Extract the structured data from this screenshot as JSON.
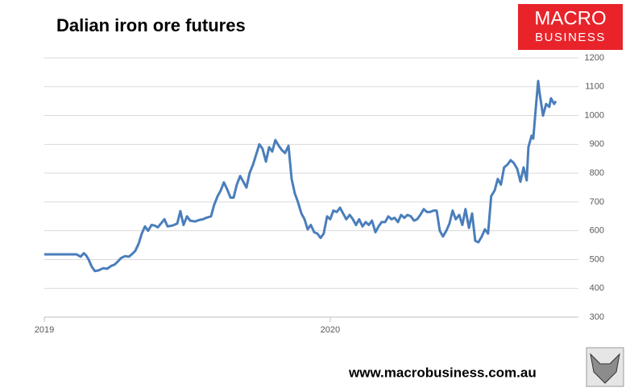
{
  "chart_data": {
    "type": "line",
    "title": "Dalian iron ore futures",
    "color": "#4a7ebb",
    "x": [
      2019.0,
      2019.113,
      2019.127,
      2019.138,
      2019.146,
      2019.155,
      2019.166,
      2019.177,
      2019.189,
      2019.206,
      2019.22,
      2019.234,
      2019.245,
      2019.256,
      2019.268,
      2019.282,
      2019.296,
      2019.31,
      2019.318,
      2019.33,
      2019.341,
      2019.352,
      2019.363,
      2019.375,
      2019.386,
      2019.397,
      2019.408,
      2019.42,
      2019.431,
      2019.448,
      2019.465,
      2019.476,
      2019.487,
      2019.499,
      2019.51,
      2019.527,
      2019.544,
      2019.555,
      2019.566,
      2019.583,
      2019.594,
      2019.606,
      2019.617,
      2019.628,
      2019.639,
      2019.651,
      2019.662,
      2019.673,
      2019.685,
      2019.696,
      2019.707,
      2019.718,
      2019.73,
      2019.741,
      2019.752,
      2019.763,
      2019.775,
      2019.786,
      2019.797,
      2019.808,
      2019.82,
      2019.831,
      2019.842,
      2019.854,
      2019.865,
      2019.876,
      2019.887,
      2019.899,
      2019.91,
      2019.921,
      2019.932,
      2019.944,
      2019.955,
      2019.966,
      2019.977,
      2019.989,
      2020.0,
      2020.011,
      2020.023,
      2020.034,
      2020.045,
      2020.056,
      2020.068,
      2020.079,
      2020.09,
      2020.101,
      2020.113,
      2020.124,
      2020.135,
      2020.146,
      2020.158,
      2020.169,
      2020.18,
      2020.192,
      2020.203,
      2020.214,
      2020.225,
      2020.237,
      2020.248,
      2020.259,
      2020.27,
      2020.282,
      2020.293,
      2020.304,
      2020.315,
      2020.327,
      2020.338,
      2020.349,
      2020.361,
      2020.372,
      2020.383,
      2020.394,
      2020.406,
      2020.417,
      2020.428,
      2020.439,
      2020.451,
      2020.462,
      2020.473,
      2020.485,
      2020.496,
      2020.507,
      2020.518,
      2020.53,
      2020.541,
      2020.552,
      2020.563,
      2020.575,
      2020.586,
      2020.597,
      2020.608,
      2020.62,
      2020.631,
      2020.642,
      2020.654,
      2020.665,
      2020.676,
      2020.687,
      2020.693,
      2020.704,
      2020.71,
      2020.721,
      2020.727,
      2020.732,
      2020.744,
      2020.755,
      2020.766,
      2020.772,
      2020.783,
      2020.789
    ],
    "values": [
      518,
      518,
      510,
      522,
      515,
      500,
      475,
      460,
      462,
      470,
      468,
      478,
      482,
      492,
      505,
      512,
      510,
      522,
      530,
      555,
      590,
      615,
      600,
      620,
      618,
      612,
      625,
      640,
      615,
      618,
      625,
      668,
      620,
      650,
      635,
      632,
      638,
      640,
      645,
      650,
      690,
      720,
      740,
      768,
      745,
      715,
      715,
      760,
      790,
      770,
      750,
      800,
      830,
      865,
      900,
      885,
      840,
      890,
      875,
      915,
      895,
      880,
      870,
      895,
      780,
      730,
      700,
      660,
      640,
      605,
      620,
      595,
      590,
      575,
      590,
      650,
      640,
      670,
      665,
      680,
      660,
      640,
      655,
      640,
      620,
      640,
      615,
      630,
      620,
      635,
      595,
      615,
      630,
      630,
      650,
      640,
      645,
      630,
      655,
      645,
      655,
      650,
      635,
      640,
      655,
      675,
      665,
      665,
      670,
      670,
      600,
      580,
      600,
      625,
      670,
      640,
      655,
      620,
      675,
      610,
      660,
      565,
      560,
      580,
      605,
      590,
      720,
      740,
      780,
      760,
      820,
      830,
      845,
      835,
      815,
      770,
      820,
      775,
      890,
      930,
      920,
      1050,
      1120,
      1080,
      1000,
      1040,
      1030,
      1060,
      1040,
      1050
    ],
    "xlim": [
      2019,
      2020.868
    ],
    "xticks": [
      2019,
      2020
    ],
    "ylim": [
      300,
      1200
    ],
    "yticks": [
      300,
      400,
      500,
      600,
      700,
      800,
      900,
      1000,
      1100,
      1200
    ],
    "grid": true
  },
  "branding": {
    "logo_top": "MACRO",
    "logo_bottom": "BUSINESS",
    "url": "www.macrobusiness.com.au"
  }
}
